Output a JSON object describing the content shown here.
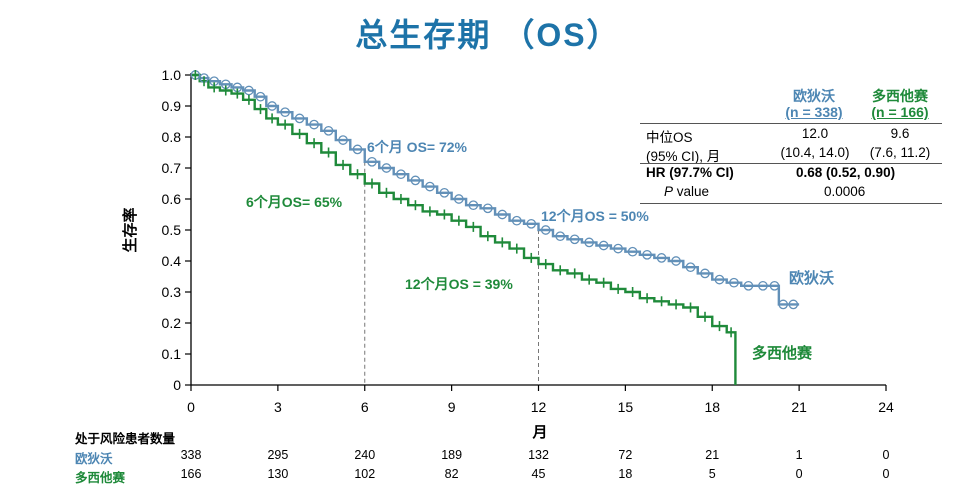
{
  "page_title": "总生存期 （OS）",
  "colors": {
    "blue": "#6290b8",
    "green": "#1f8a3a",
    "title": "#1d73a8"
  },
  "chart_data": {
    "type": "line",
    "title": "总生存期 （OS）",
    "xlabel": "月",
    "ylabel": "生存率",
    "xlim": [
      0,
      24
    ],
    "ylim": [
      0,
      1.0
    ],
    "x_ticks": [
      "0",
      "3",
      "6",
      "9",
      "12",
      "15",
      "18",
      "21",
      "24"
    ],
    "y_ticks": [
      "0",
      "0.1",
      "0.2",
      "0.3",
      "0.4",
      "0.5",
      "0.6",
      "0.7",
      "0.8",
      "0.9",
      "1.0"
    ],
    "series": [
      {
        "name": "欧狄沃",
        "color": "#6290b8",
        "x": [
          0,
          0.3,
          0.6,
          1.0,
          1.4,
          1.8,
          2.2,
          2.6,
          3.0,
          3.5,
          4.0,
          4.5,
          5.0,
          5.5,
          6.0,
          6.5,
          7.0,
          7.5,
          8.0,
          8.5,
          9.0,
          9.5,
          10.0,
          10.5,
          11.0,
          11.5,
          12.0,
          12.5,
          13.0,
          13.5,
          14.0,
          14.5,
          15.0,
          15.5,
          16.0,
          16.5,
          17.0,
          17.5,
          18.0,
          18.5,
          19.0,
          19.5,
          20.0,
          20.3,
          20.6,
          21.0
        ],
        "y": [
          1.0,
          0.99,
          0.98,
          0.97,
          0.96,
          0.95,
          0.93,
          0.9,
          0.88,
          0.86,
          0.84,
          0.82,
          0.79,
          0.76,
          0.72,
          0.7,
          0.68,
          0.66,
          0.64,
          0.62,
          0.6,
          0.58,
          0.57,
          0.55,
          0.53,
          0.52,
          0.5,
          0.48,
          0.47,
          0.46,
          0.45,
          0.44,
          0.43,
          0.42,
          0.41,
          0.4,
          0.38,
          0.36,
          0.34,
          0.33,
          0.32,
          0.32,
          0.32,
          0.26,
          0.26,
          0.26
        ],
        "annotation": "6个月 OS= 72%"
      },
      {
        "name": "多西他赛",
        "color": "#1f8a3a",
        "x": [
          0,
          0.3,
          0.6,
          1.0,
          1.4,
          1.8,
          2.2,
          2.6,
          3.0,
          3.5,
          4.0,
          4.5,
          5.0,
          5.5,
          6.0,
          6.5,
          7.0,
          7.5,
          8.0,
          8.5,
          9.0,
          9.5,
          10.0,
          10.5,
          11.0,
          11.5,
          12.0,
          12.5,
          13.0,
          13.5,
          14.0,
          14.5,
          15.0,
          15.5,
          16.0,
          16.5,
          17.0,
          17.5,
          18.0,
          18.5,
          18.8
        ],
        "y": [
          1.0,
          0.98,
          0.96,
          0.95,
          0.94,
          0.92,
          0.89,
          0.86,
          0.84,
          0.81,
          0.78,
          0.75,
          0.71,
          0.68,
          0.65,
          0.62,
          0.6,
          0.58,
          0.56,
          0.55,
          0.53,
          0.51,
          0.48,
          0.46,
          0.44,
          0.41,
          0.39,
          0.37,
          0.36,
          0.34,
          0.33,
          0.31,
          0.3,
          0.28,
          0.27,
          0.26,
          0.25,
          0.22,
          0.19,
          0.17,
          0.0
        ],
        "annotation": "6个月OS= 65%"
      }
    ],
    "annotations": {
      "blue_6m": "6个月 OS= 72%",
      "green_6m": "6个月OS= 65%",
      "blue_12m": "12个月OS = 50%",
      "green_12m": "12个月OS = 39%",
      "blue_end": "欧狄沃",
      "green_end": "多西他赛"
    },
    "reference_lines_x": [
      6,
      12
    ]
  },
  "summary_table": {
    "col_blue": "欧狄沃",
    "col_blue_n": "(n = 338)",
    "col_green": "多西他赛",
    "col_green_n": "(n = 166)",
    "rows": [
      {
        "label": "中位OS",
        "blue": "12.0",
        "green": "9.6"
      },
      {
        "label": "(95% CI), 月",
        "blue": "(10.4, 14.0)",
        "green": "(7.6, 11.2)"
      },
      {
        "label": "HR (97.7% CI)",
        "combined": "0.68 (0.52, 0.90)"
      },
      {
        "label_italic": "P",
        "label_rest": " value",
        "combined": "0.0006"
      }
    ]
  },
  "risk_table": {
    "title": "处于风险患者数量",
    "rows": [
      {
        "label": "欧狄沃",
        "values": [
          "338",
          "295",
          "240",
          "189",
          "132",
          "72",
          "21",
          "1",
          "0"
        ]
      },
      {
        "label": "多西他赛",
        "values": [
          "166",
          "130",
          "102",
          "82",
          "45",
          "18",
          "5",
          "0",
          "0"
        ]
      }
    ]
  }
}
